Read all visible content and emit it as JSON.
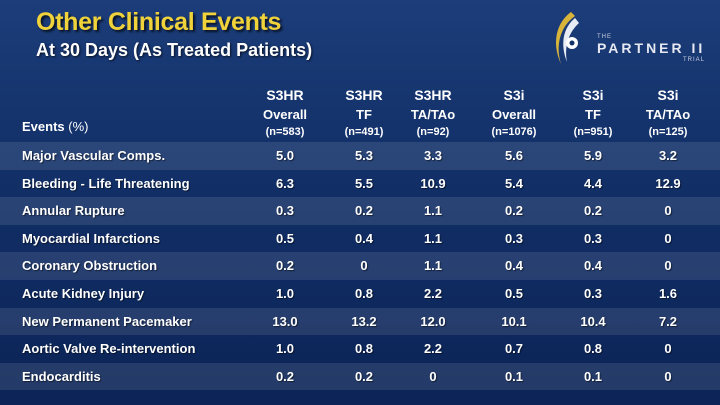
{
  "slide": {
    "title": "Other Clinical Events",
    "subtitle": "At 30 Days (As Treated Patients)"
  },
  "logo": {
    "the": "THE",
    "word": "PARTNER II",
    "trial": "TRIAL",
    "icon": "partner-trial-logo-icon"
  },
  "colors": {
    "title": "#f0d23a",
    "text": "#ffffff",
    "background": "#123068"
  },
  "table": {
    "events_label": "Events",
    "events_unit": "(%)",
    "columns": [
      {
        "group": "S3HR",
        "sub": "Overall",
        "n": "(n=583)"
      },
      {
        "group": "S3HR",
        "sub": "TF",
        "n": "(n=491)"
      },
      {
        "group": "S3HR",
        "sub": "TA/TAo",
        "n": "(n=92)"
      },
      {
        "group": "S3i",
        "sub": "Overall",
        "n": "(n=1076)"
      },
      {
        "group": "S3i",
        "sub": "TF",
        "n": "(n=951)"
      },
      {
        "group": "S3i",
        "sub": "TA/TAo",
        "n": "(n=125)"
      }
    ],
    "rows": [
      {
        "label": "Major Vascular Comps.",
        "values": [
          "5.0",
          "5.3",
          "3.3",
          "5.6",
          "5.9",
          "3.2"
        ]
      },
      {
        "label": "Bleeding - Life Threatening",
        "values": [
          "6.3",
          "5.5",
          "10.9",
          "5.4",
          "4.4",
          "12.9"
        ]
      },
      {
        "label": "Annular Rupture",
        "values": [
          "0.3",
          "0.2",
          "1.1",
          "0.2",
          "0.2",
          "0"
        ]
      },
      {
        "label": "Myocardial Infarctions",
        "values": [
          "0.5",
          "0.4",
          "1.1",
          "0.3",
          "0.3",
          "0"
        ]
      },
      {
        "label": "Coronary Obstruction",
        "values": [
          "0.2",
          "0",
          "1.1",
          "0.4",
          "0.4",
          "0"
        ]
      },
      {
        "label": "Acute Kidney Injury",
        "values": [
          "1.0",
          "0.8",
          "2.2",
          "0.5",
          "0.3",
          "1.6"
        ]
      },
      {
        "label": "New Permanent Pacemaker",
        "values": [
          "13.0",
          "13.2",
          "12.0",
          "10.1",
          "10.4",
          "7.2"
        ]
      },
      {
        "label": "Aortic Valve Re-intervention",
        "values": [
          "1.0",
          "0.8",
          "2.2",
          "0.7",
          "0.8",
          "0"
        ]
      },
      {
        "label": "Endocarditis",
        "values": [
          "0.2",
          "0.2",
          "0",
          "0.1",
          "0.1",
          "0"
        ]
      }
    ]
  }
}
